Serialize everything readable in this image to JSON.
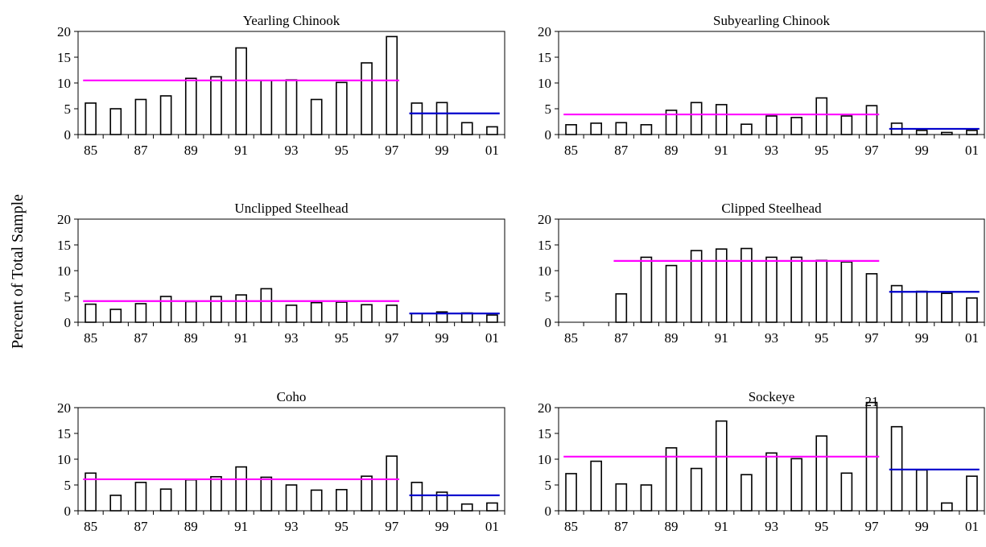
{
  "figure": {
    "ylabel": "Percent of Total Sample"
  },
  "colors": {
    "pre_mean": "#ff00ff",
    "post_mean": "#0000cc",
    "bar_fill": "#ffffff",
    "bar_stroke": "#000000"
  },
  "chart_data": [
    {
      "type": "bar",
      "title": "Yearling Chinook",
      "categories": [
        "85",
        "86",
        "87",
        "88",
        "89",
        "90",
        "91",
        "92",
        "93",
        "94",
        "95",
        "96",
        "97",
        "98",
        "99",
        "00",
        "01"
      ],
      "tick_labels": [
        "85",
        "87",
        "89",
        "91",
        "93",
        "95",
        "97",
        "99",
        "01"
      ],
      "values": [
        6.1,
        5.0,
        6.8,
        7.5,
        10.9,
        11.2,
        16.8,
        10.5,
        10.6,
        6.8,
        10.1,
        13.9,
        19.0,
        6.1,
        6.2,
        2.3,
        1.5
      ],
      "ylim": [
        0,
        20
      ],
      "yticks": [
        0,
        5,
        10,
        15,
        20
      ],
      "pre_mean": {
        "value": 10.5,
        "from": "85",
        "to": "97"
      },
      "post_mean": {
        "value": 4.1,
        "from": "98",
        "to": "01"
      }
    },
    {
      "type": "bar",
      "title": "Subyearling Chinook",
      "categories": [
        "85",
        "86",
        "87",
        "88",
        "89",
        "90",
        "91",
        "92",
        "93",
        "94",
        "95",
        "96",
        "97",
        "98",
        "99",
        "00",
        "01"
      ],
      "tick_labels": [
        "85",
        "87",
        "89",
        "91",
        "93",
        "95",
        "97",
        "99",
        "01"
      ],
      "values": [
        1.9,
        2.2,
        2.3,
        1.9,
        4.7,
        6.2,
        5.8,
        2.0,
        3.6,
        3.3,
        7.1,
        3.6,
        5.6,
        2.2,
        0.8,
        0.4,
        0.8
      ],
      "ylim": [
        0,
        20
      ],
      "yticks": [
        0,
        5,
        10,
        15,
        20
      ],
      "pre_mean": {
        "value": 3.9,
        "from": "85",
        "to": "97"
      },
      "post_mean": {
        "value": 1.1,
        "from": "98",
        "to": "01"
      }
    },
    {
      "type": "bar",
      "title": "Unclipped Steelhead",
      "categories": [
        "85",
        "86",
        "87",
        "88",
        "89",
        "90",
        "91",
        "92",
        "93",
        "94",
        "95",
        "96",
        "97",
        "98",
        "99",
        "00",
        "01"
      ],
      "tick_labels": [
        "85",
        "87",
        "89",
        "91",
        "93",
        "95",
        "97",
        "99",
        "01"
      ],
      "values": [
        3.5,
        2.5,
        3.6,
        5.0,
        4.0,
        5.0,
        5.3,
        6.5,
        3.3,
        3.8,
        3.9,
        3.4,
        3.3,
        1.7,
        2.0,
        1.8,
        1.4
      ],
      "ylim": [
        0,
        20
      ],
      "yticks": [
        0,
        5,
        10,
        15,
        20
      ],
      "pre_mean": {
        "value": 4.1,
        "from": "85",
        "to": "97"
      },
      "post_mean": {
        "value": 1.7,
        "from": "98",
        "to": "01"
      }
    },
    {
      "type": "bar",
      "title": "Clipped Steelhead",
      "categories": [
        "85",
        "86",
        "87",
        "88",
        "89",
        "90",
        "91",
        "92",
        "93",
        "94",
        "95",
        "96",
        "97",
        "98",
        "99",
        "00",
        "01"
      ],
      "tick_labels": [
        "85",
        "87",
        "89",
        "91",
        "93",
        "95",
        "97",
        "99",
        "01"
      ],
      "values": [
        0,
        0,
        5.5,
        12.6,
        11.0,
        13.9,
        14.2,
        14.3,
        12.6,
        12.6,
        12.0,
        11.7,
        9.4,
        7.1,
        6.0,
        5.6,
        4.7
      ],
      "ylim": [
        0,
        20
      ],
      "yticks": [
        0,
        5,
        10,
        15,
        20
      ],
      "pre_mean": {
        "value": 11.9,
        "from": "87",
        "to": "97"
      },
      "post_mean": {
        "value": 5.9,
        "from": "98",
        "to": "01"
      }
    },
    {
      "type": "bar",
      "title": "Coho",
      "categories": [
        "85",
        "86",
        "87",
        "88",
        "89",
        "90",
        "91",
        "92",
        "93",
        "94",
        "95",
        "96",
        "97",
        "98",
        "99",
        "00",
        "01"
      ],
      "tick_labels": [
        "85",
        "87",
        "89",
        "91",
        "93",
        "95",
        "97",
        "99",
        "01"
      ],
      "values": [
        7.3,
        3.0,
        5.5,
        4.2,
        6.0,
        6.6,
        8.5,
        6.5,
        5.0,
        4.0,
        4.1,
        6.7,
        10.6,
        5.5,
        3.6,
        1.3,
        1.5
      ],
      "ylim": [
        0,
        20
      ],
      "yticks": [
        0,
        5,
        10,
        15,
        20
      ],
      "pre_mean": {
        "value": 6.1,
        "from": "85",
        "to": "97"
      },
      "post_mean": {
        "value": 3.0,
        "from": "98",
        "to": "01"
      }
    },
    {
      "type": "bar",
      "title": "Sockeye",
      "categories": [
        "85",
        "86",
        "87",
        "88",
        "89",
        "90",
        "91",
        "92",
        "93",
        "94",
        "95",
        "96",
        "97",
        "98",
        "99",
        "00",
        "01"
      ],
      "tick_labels": [
        "85",
        "87",
        "89",
        "91",
        "93",
        "95",
        "97",
        "99",
        "01"
      ],
      "values": [
        7.2,
        9.6,
        5.2,
        5.0,
        12.2,
        8.2,
        17.4,
        7.0,
        11.2,
        10.1,
        14.5,
        7.3,
        21,
        16.3,
        7.9,
        1.5,
        6.7
      ],
      "ylim": [
        0,
        20
      ],
      "yticks": [
        0,
        5,
        10,
        15,
        20
      ],
      "pre_mean": {
        "value": 10.5,
        "from": "85",
        "to": "97"
      },
      "post_mean": {
        "value": 8.0,
        "from": "98",
        "to": "01"
      },
      "data_labels": [
        {
          "category": "97",
          "text": "21"
        }
      ]
    }
  ]
}
